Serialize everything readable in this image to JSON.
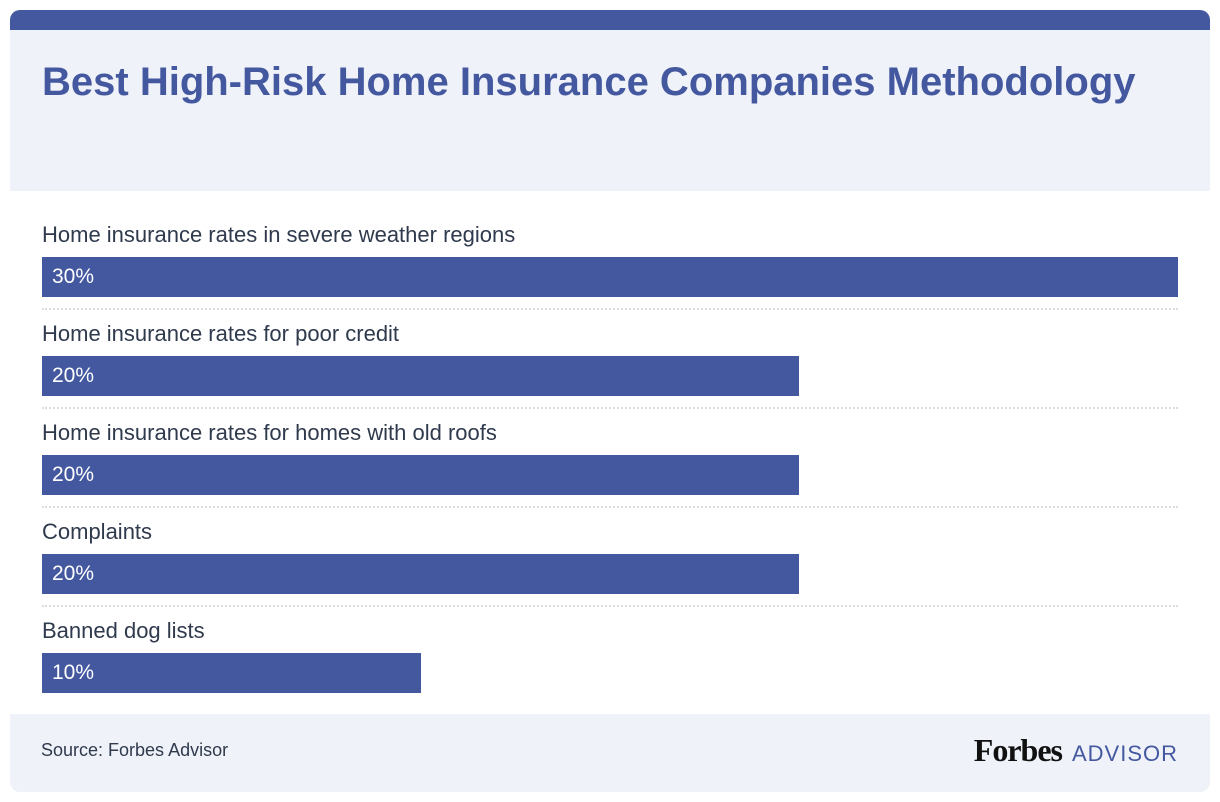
{
  "header": {
    "title": "Best High-Risk Home Insurance Companies Methodology"
  },
  "chart_data": {
    "type": "bar",
    "orientation": "horizontal",
    "title": "Best High-Risk Home Insurance Companies Methodology",
    "categories": [
      "Home insurance rates in severe weather regions",
      "Home insurance rates for poor credit",
      "Home insurance rates for homes with old roofs",
      "Complaints",
      "Banned dog lists"
    ],
    "values": [
      30,
      20,
      20,
      20,
      10
    ],
    "value_labels": [
      "30%",
      "20%",
      "20%",
      "20%",
      "10%"
    ],
    "unit": "%",
    "xlabel": "",
    "ylabel": "",
    "xlim": [
      0,
      30
    ],
    "grid": false,
    "legend": null,
    "bar_color": "#4458a0"
  },
  "footer": {
    "source": "Source: Forbes Advisor",
    "logo_brand": "Forbes",
    "logo_sub": "ADVISOR"
  },
  "colors": {
    "accent": "#4458a0",
    "header_bg": "#eff2f8",
    "text": "#2f3a4d"
  }
}
